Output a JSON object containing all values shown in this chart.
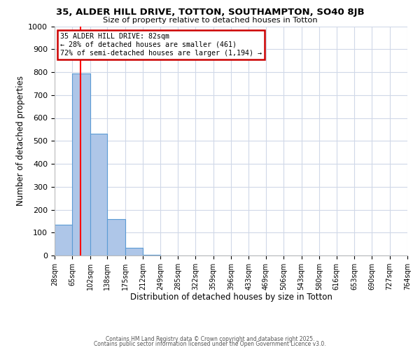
{
  "title": "35, ALDER HILL DRIVE, TOTTON, SOUTHAMPTON, SO40 8JB",
  "subtitle": "Size of property relative to detached houses in Totton",
  "xlabel": "Distribution of detached houses by size in Totton",
  "ylabel": "Number of detached properties",
  "bar_values": [
    135,
    795,
    530,
    160,
    35,
    2,
    0,
    0,
    0,
    0,
    0,
    0,
    0,
    0,
    0,
    0,
    0,
    0,
    0,
    0
  ],
  "bin_edges": [
    28,
    65,
    102,
    138,
    175,
    212,
    249,
    285,
    322,
    359,
    396,
    433,
    469,
    506,
    543,
    580,
    616,
    653,
    690,
    727,
    764
  ],
  "x_tick_labels": [
    "28sqm",
    "65sqm",
    "102sqm",
    "138sqm",
    "175sqm",
    "212sqm",
    "249sqm",
    "285sqm",
    "322sqm",
    "359sqm",
    "396sqm",
    "433sqm",
    "469sqm",
    "506sqm",
    "543sqm",
    "580sqm",
    "616sqm",
    "653sqm",
    "690sqm",
    "727sqm",
    "764sqm"
  ],
  "ylim": [
    0,
    1000
  ],
  "yticks": [
    0,
    100,
    200,
    300,
    400,
    500,
    600,
    700,
    800,
    900,
    1000
  ],
  "bar_color": "#aec6e8",
  "bar_edge_color": "#5b9bd5",
  "red_line_x": 82,
  "annotation_title": "35 ALDER HILL DRIVE: 82sqm",
  "annotation_line1": "← 28% of detached houses are smaller (461)",
  "annotation_line2": "72% of semi-detached houses are larger (1,194) →",
  "annotation_box_color": "#ffffff",
  "annotation_border_color": "#cc0000",
  "background_color": "#ffffff",
  "grid_color": "#d0d8e8",
  "footer1": "Contains HM Land Registry data © Crown copyright and database right 2025.",
  "footer2": "Contains public sector information licensed under the Open Government Licence v3.0."
}
